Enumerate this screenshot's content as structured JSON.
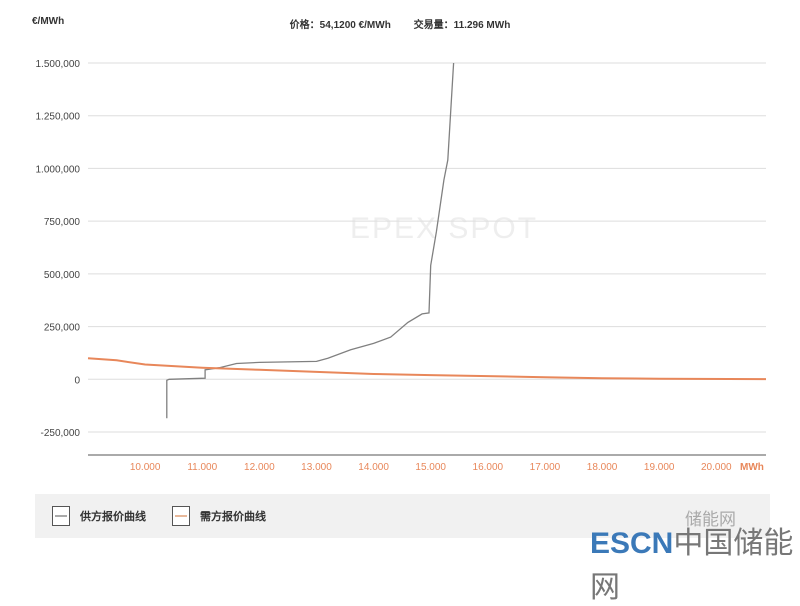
{
  "header": {
    "unit_label": "€/MWh",
    "price": "价格：54,1200 €/MWh",
    "volume": "交易量：11.296 MWh"
  },
  "watermarks": {
    "chart": "EPEX SPOT",
    "site": "ESCN",
    "site_cn": "中国储能网",
    "wechat": "储能网"
  },
  "colors": {
    "supply": "#808080",
    "demand": "#e8875a",
    "xtick": "#e8875a",
    "grid": "#dddddd"
  },
  "chart_data": {
    "type": "line",
    "xlabel": "MWh",
    "ylabel": "€/MWh",
    "xlim": [
      9000,
      20870
    ],
    "ylim": [
      -250000,
      1500000
    ],
    "grid": true,
    "legend_placement": "bottom",
    "x_ticks": [
      "10.000",
      "11.000",
      "12.000",
      "13.000",
      "14.000",
      "15.000",
      "16.000",
      "17.000",
      "18.000",
      "19.000",
      "20.000"
    ],
    "x_tick_values": [
      10000,
      11000,
      12000,
      13000,
      14000,
      15000,
      16000,
      17000,
      18000,
      19000,
      20000
    ],
    "y_ticks": [
      "1.500,000",
      "1.250,000",
      "1.000,000",
      "750,000",
      "500,000",
      "250,000",
      "0",
      "-250,000"
    ],
    "y_tick_values": [
      1500000,
      1250000,
      1000000,
      750000,
      500000,
      250000,
      0,
      -250000
    ],
    "series": [
      {
        "name": "供方报价曲线",
        "points": [
          [
            10380,
            -185000
          ],
          [
            10380,
            -5000
          ],
          [
            10420,
            0
          ],
          [
            11050,
            5000
          ],
          [
            11050,
            45000
          ],
          [
            11300,
            55000
          ],
          [
            11600,
            75000
          ],
          [
            12000,
            80000
          ],
          [
            13000,
            85000
          ],
          [
            13200,
            100000
          ],
          [
            13600,
            140000
          ],
          [
            14000,
            170000
          ],
          [
            14300,
            200000
          ],
          [
            14600,
            270000
          ],
          [
            14850,
            310000
          ],
          [
            14970,
            315000
          ],
          [
            15000,
            540000
          ],
          [
            15100,
            700000
          ],
          [
            15230,
            945000
          ],
          [
            15300,
            1040000
          ],
          [
            15400,
            1500000
          ]
        ]
      },
      {
        "name": "需方报价曲线",
        "points": [
          [
            9000,
            100000
          ],
          [
            9500,
            90000
          ],
          [
            10000,
            70000
          ],
          [
            11000,
            55000
          ],
          [
            12000,
            45000
          ],
          [
            13000,
            35000
          ],
          [
            14000,
            25000
          ],
          [
            15000,
            20000
          ],
          [
            16000,
            15000
          ],
          [
            17000,
            10000
          ],
          [
            18000,
            5000
          ],
          [
            19000,
            3000
          ],
          [
            20870,
            1000
          ]
        ]
      }
    ]
  }
}
